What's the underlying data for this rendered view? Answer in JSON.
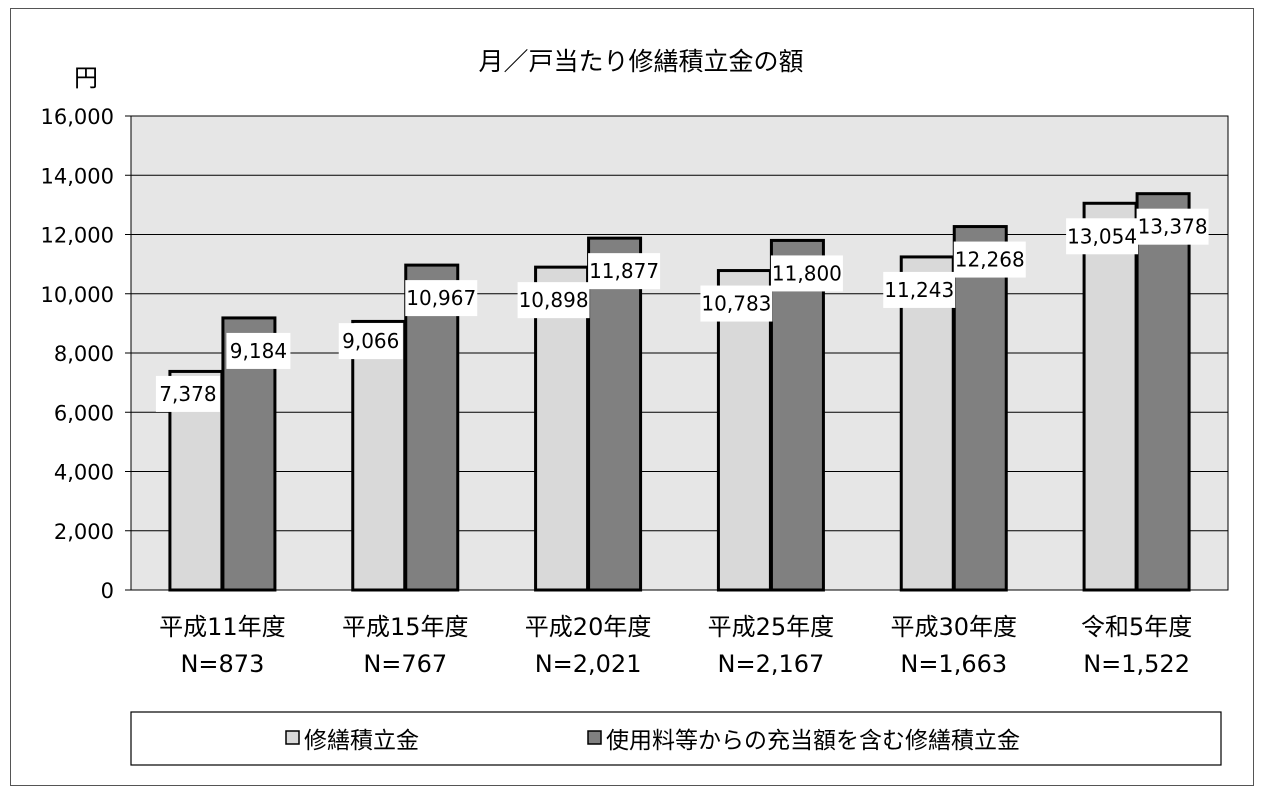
{
  "chart_data": {
    "type": "bar",
    "title": "月／戸当たり修繕積立金の額",
    "ylabel": "円",
    "xlabel": "",
    "ylim": [
      0,
      16000
    ],
    "yticks": [
      "0",
      "2,000",
      "4,000",
      "6,000",
      "8,000",
      "10,000",
      "12,000",
      "14,000",
      "16,000"
    ],
    "grid": true,
    "legend_position": "bottom",
    "categories": [
      "平成11年度",
      "平成15年度",
      "平成20年度",
      "平成25年度",
      "平成30年度",
      "令和5年度"
    ],
    "category_sublabels": [
      "N=873",
      "N=767",
      "N=2,021",
      "N=2,167",
      "N=1,663",
      "N=1,522"
    ],
    "series": [
      {
        "name": "修繕積立金",
        "color": "#d9d9d9",
        "values": [
          7378,
          9066,
          10898,
          10783,
          11243,
          13054
        ],
        "labels": [
          "7,378",
          "9,066",
          "10,898",
          "10,783",
          "11,243",
          "13,054"
        ]
      },
      {
        "name": "使用料等からの充当額を含む修繕積立金",
        "color": "#808080",
        "values": [
          9184,
          10967,
          11877,
          11800,
          12268,
          13378
        ],
        "labels": [
          "9,184",
          "10,967",
          "11,877",
          "11,800",
          "12,268",
          "13,378"
        ]
      }
    ],
    "plot_background": "#e6e6e6"
  }
}
